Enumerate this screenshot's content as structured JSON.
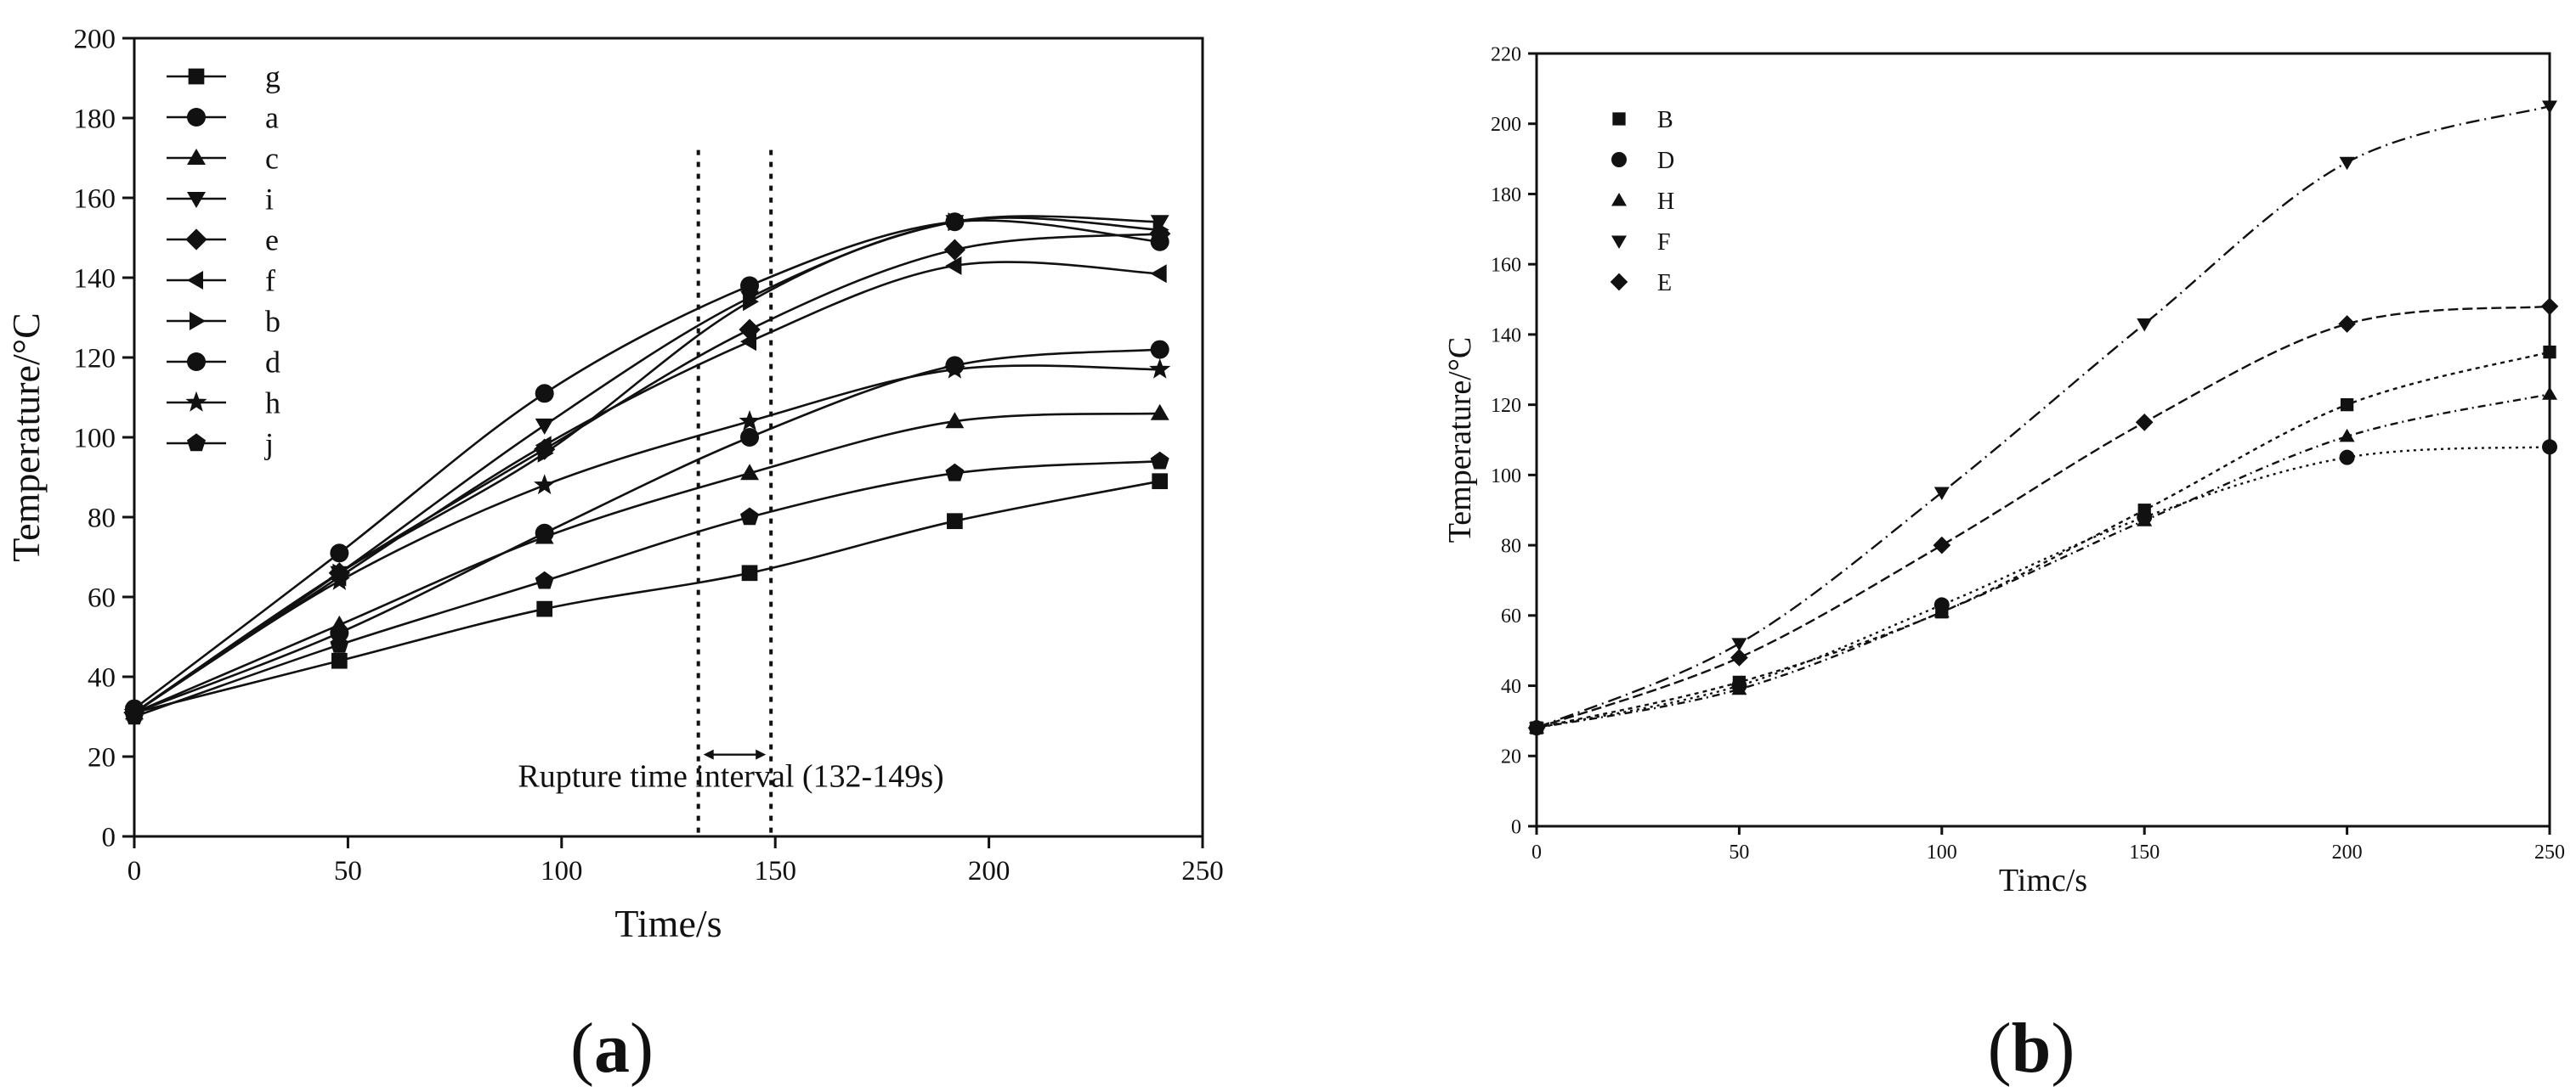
{
  "chart_data": [
    {
      "id": "a",
      "type": "line",
      "caption_letter": "a",
      "xlabel": "Time/s",
      "ylabel": "Temperature/°C",
      "xlim": [
        0,
        250
      ],
      "ylim": [
        0,
        200
      ],
      "xticks": [
        "0",
        "50",
        "100",
        "150",
        "200",
        "250"
      ],
      "yticks": [
        "0",
        "20",
        "40",
        "60",
        "80",
        "100",
        "120",
        "140",
        "160",
        "180",
        "200"
      ],
      "x": [
        0,
        48,
        96,
        144,
        192,
        240
      ],
      "annotation": "Rupture time interval (132-149s)",
      "rupture_interval": [
        132,
        149
      ],
      "series": [
        {
          "name": "g",
          "marker": "square",
          "values": [
            31,
            44,
            57,
            66,
            79,
            89
          ]
        },
        {
          "name": "a",
          "marker": "circle",
          "values": [
            32,
            71,
            111,
            138,
            154,
            149
          ]
        },
        {
          "name": "c",
          "marker": "triangle-up",
          "values": [
            31,
            53,
            75,
            91,
            104,
            106
          ]
        },
        {
          "name": "i",
          "marker": "triangle-down",
          "values": [
            31,
            66,
            103,
            135,
            154,
            154
          ]
        },
        {
          "name": "e",
          "marker": "diamond",
          "values": [
            31,
            66,
            97,
            127,
            147,
            151
          ]
        },
        {
          "name": "f",
          "marker": "triangle-left",
          "values": [
            31,
            65,
            98,
            124,
            143,
            141
          ]
        },
        {
          "name": "b",
          "marker": "triangle-right",
          "values": [
            31,
            66,
            96,
            134,
            154,
            152
          ]
        },
        {
          "name": "d",
          "marker": "circle",
          "values": [
            31,
            51,
            76,
            100,
            118,
            122
          ]
        },
        {
          "name": "h",
          "marker": "star",
          "values": [
            31,
            64,
            88,
            104,
            117,
            117
          ]
        },
        {
          "name": "j",
          "marker": "pentagon",
          "values": [
            30,
            48,
            64,
            80,
            91,
            94
          ]
        }
      ]
    },
    {
      "id": "b",
      "type": "line",
      "caption_letter": "b",
      "xlabel": "Timc/s",
      "ylabel": "Temperature/°C",
      "xlim": [
        0,
        250
      ],
      "ylim": [
        0,
        220
      ],
      "xticks": [
        "0",
        "50",
        "100",
        "150",
        "200",
        "250"
      ],
      "yticks": [
        "0",
        "20",
        "40",
        "60",
        "80",
        "100",
        "120",
        "140",
        "160",
        "180",
        "200",
        "220"
      ],
      "x": [
        0,
        50,
        100,
        150,
        200,
        250
      ],
      "series": [
        {
          "name": "B",
          "marker": "square",
          "values": [
            28,
            41,
            61,
            90,
            120,
            135
          ]
        },
        {
          "name": "D",
          "marker": "circle",
          "values": [
            28,
            40,
            63,
            88,
            105,
            108
          ]
        },
        {
          "name": "H",
          "marker": "triangle-up",
          "values": [
            28,
            39,
            61,
            87,
            111,
            123
          ]
        },
        {
          "name": "F",
          "marker": "triangle-down",
          "values": [
            28,
            52,
            95,
            143,
            189,
            205
          ]
        },
        {
          "name": "E",
          "marker": "diamond",
          "values": [
            28,
            48,
            80,
            115,
            143,
            148
          ]
        }
      ]
    }
  ]
}
